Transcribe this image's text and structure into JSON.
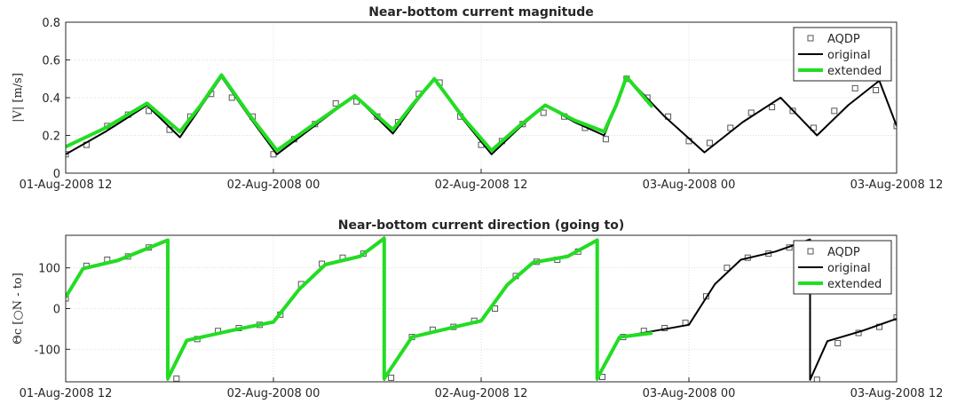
{
  "chart_data": [
    {
      "type": "line",
      "title": "Near-bottom current magnitude",
      "ylabel": "|V| [m/s]",
      "xlim": [
        12,
        60
      ],
      "ylim": [
        0,
        0.8
      ],
      "xticks": [
        {
          "value": 12,
          "label": "01-Aug-2008 12"
        },
        {
          "value": 24,
          "label": "02-Aug-2008 00"
        },
        {
          "value": 36,
          "label": "02-Aug-2008 12"
        },
        {
          "value": 48,
          "label": "03-Aug-2008 00"
        },
        {
          "value": 60,
          "label": "03-Aug-2008 12"
        }
      ],
      "yticks": [
        0,
        0.2,
        0.4,
        0.6,
        0.8
      ],
      "grid": true,
      "legend": "northeast",
      "series": [
        {
          "name": "AQDP",
          "color": "#555555",
          "style": "markers",
          "x": [
            12,
            13.2,
            14.4,
            15.6,
            16.8,
            18,
            19.2,
            20.4,
            21.6,
            22.8,
            24,
            25.2,
            26.4,
            27.6,
            28.8,
            30,
            31.2,
            32.4,
            33.6,
            34.8,
            36,
            37.2,
            38.4,
            39.6,
            40.8,
            42,
            43.2,
            44.4,
            45.6,
            46.8,
            48,
            49.2,
            50.4,
            51.6,
            52.8,
            54,
            55.2,
            56.4,
            57.6,
            58.8,
            60
          ],
          "values": [
            0.1,
            0.15,
            0.25,
            0.31,
            0.33,
            0.23,
            0.3,
            0.42,
            0.4,
            0.3,
            0.1,
            0.18,
            0.26,
            0.37,
            0.38,
            0.3,
            0.27,
            0.42,
            0.48,
            0.3,
            0.15,
            0.17,
            0.26,
            0.32,
            0.3,
            0.24,
            0.18,
            0.5,
            0.4,
            0.3,
            0.17,
            0.16,
            0.24,
            0.32,
            0.35,
            0.33,
            0.24,
            0.33,
            0.45,
            0.44,
            0.25
          ]
        },
        {
          "name": "original",
          "color": "#000000",
          "style": "line",
          "width": 2,
          "x": [
            12,
            14.3,
            16.7,
            18.6,
            19.8,
            21.0,
            22.6,
            24.2,
            26.5,
            28.7,
            30.9,
            32.1,
            33.3,
            35,
            36.6,
            38.2,
            39.7,
            41.4,
            43.1,
            43.8,
            44.4,
            46.6,
            48.9,
            51.1,
            53.3,
            55.4,
            57.2,
            59,
            60
          ],
          "values": [
            0.1,
            0.22,
            0.36,
            0.19,
            0.35,
            0.51,
            0.3,
            0.1,
            0.26,
            0.41,
            0.21,
            0.36,
            0.5,
            0.28,
            0.1,
            0.24,
            0.36,
            0.27,
            0.2,
            0.36,
            0.51,
            0.3,
            0.11,
            0.27,
            0.4,
            0.2,
            0.36,
            0.49,
            0.25
          ]
        },
        {
          "name": "extended",
          "color": "#22dd22",
          "style": "line",
          "width": 4,
          "x": [
            12,
            14.3,
            16.7,
            18.6,
            19.8,
            21.0,
            22.6,
            24.2,
            26.5,
            28.7,
            30.9,
            32.1,
            33.3,
            35,
            36.6,
            38.2,
            39.7,
            41.4,
            43.1,
            43.8,
            44.4,
            45.9
          ],
          "values": [
            0.14,
            0.24,
            0.37,
            0.22,
            0.36,
            0.52,
            0.31,
            0.12,
            0.27,
            0.41,
            0.23,
            0.37,
            0.5,
            0.29,
            0.12,
            0.25,
            0.36,
            0.28,
            0.22,
            0.36,
            0.51,
            0.35
          ]
        }
      ]
    },
    {
      "type": "line",
      "title": "Near-bottom current direction (going to)",
      "ylabel": "Θc [○N - to]",
      "xlim": [
        12,
        60
      ],
      "ylim": [
        -180,
        180
      ],
      "xticks": [
        {
          "value": 12,
          "label": "01-Aug-2008 12"
        },
        {
          "value": 24,
          "label": "02-Aug-2008 00"
        },
        {
          "value": 36,
          "label": "02-Aug-2008 12"
        },
        {
          "value": 48,
          "label": "03-Aug-2008 00"
        },
        {
          "value": 60,
          "label": "03-Aug-2008 12"
        }
      ],
      "yticks": [
        -100,
        0,
        100
      ],
      "grid": true,
      "legend": "northeast",
      "series": [
        {
          "name": "AQDP",
          "color": "#555555",
          "style": "markers",
          "x": [
            12,
            13.2,
            14.4,
            15.6,
            16.8,
            18.4,
            19.6,
            20.8,
            22,
            23.2,
            24.4,
            25.6,
            26.8,
            28,
            29.2,
            30.8,
            32,
            33.2,
            34.4,
            35.6,
            36.8,
            38,
            39.2,
            40.4,
            41.6,
            43,
            44.2,
            45.4,
            46.6,
            47.8,
            49,
            50.2,
            51.4,
            52.6,
            53.8,
            55.4,
            56.6,
            57.8,
            59,
            60
          ],
          "values": [
            25,
            105,
            120,
            128,
            150,
            -172,
            -75,
            -55,
            -48,
            -40,
            -15,
            60,
            110,
            125,
            135,
            -170,
            -70,
            -52,
            -45,
            -30,
            0,
            80,
            115,
            120,
            140,
            -168,
            -70,
            -55,
            -48,
            -35,
            30,
            100,
            125,
            135,
            150,
            -175,
            -85,
            -60,
            -45,
            -22
          ]
        },
        {
          "name": "original",
          "color": "#000000",
          "style": "line",
          "width": 2,
          "x": [
            12,
            13,
            15,
            17.9,
            17.9,
            19,
            22,
            24,
            25.5,
            27,
            29,
            30.4,
            30.4,
            32,
            34,
            36,
            37.5,
            39,
            41,
            42.7,
            42.7,
            44,
            46,
            48,
            49.5,
            51,
            53,
            55.0,
            55.0,
            56,
            58,
            60
          ],
          "values": [
            30,
            100,
            120,
            170,
            -175,
            -80,
            -50,
            -35,
            50,
            110,
            130,
            175,
            -175,
            -70,
            -50,
            -30,
            60,
            115,
            130,
            170,
            -175,
            -70,
            -55,
            -40,
            60,
            120,
            140,
            170,
            -175,
            -80,
            -55,
            -25
          ]
        },
        {
          "name": "extended",
          "color": "#22dd22",
          "style": "line",
          "width": 4,
          "x": [
            12,
            13,
            15,
            17.9,
            17.9,
            19,
            22,
            24,
            25.5,
            27,
            29,
            30.4,
            30.4,
            32,
            34,
            36,
            37.5,
            39,
            41,
            42.7,
            42.7,
            44,
            45.9
          ],
          "values": [
            28,
            98,
            118,
            168,
            -172,
            -78,
            -50,
            -33,
            48,
            108,
            128,
            172,
            -172,
            -70,
            -50,
            -30,
            58,
            113,
            128,
            168,
            -172,
            -70,
            -60
          ]
        }
      ]
    }
  ]
}
